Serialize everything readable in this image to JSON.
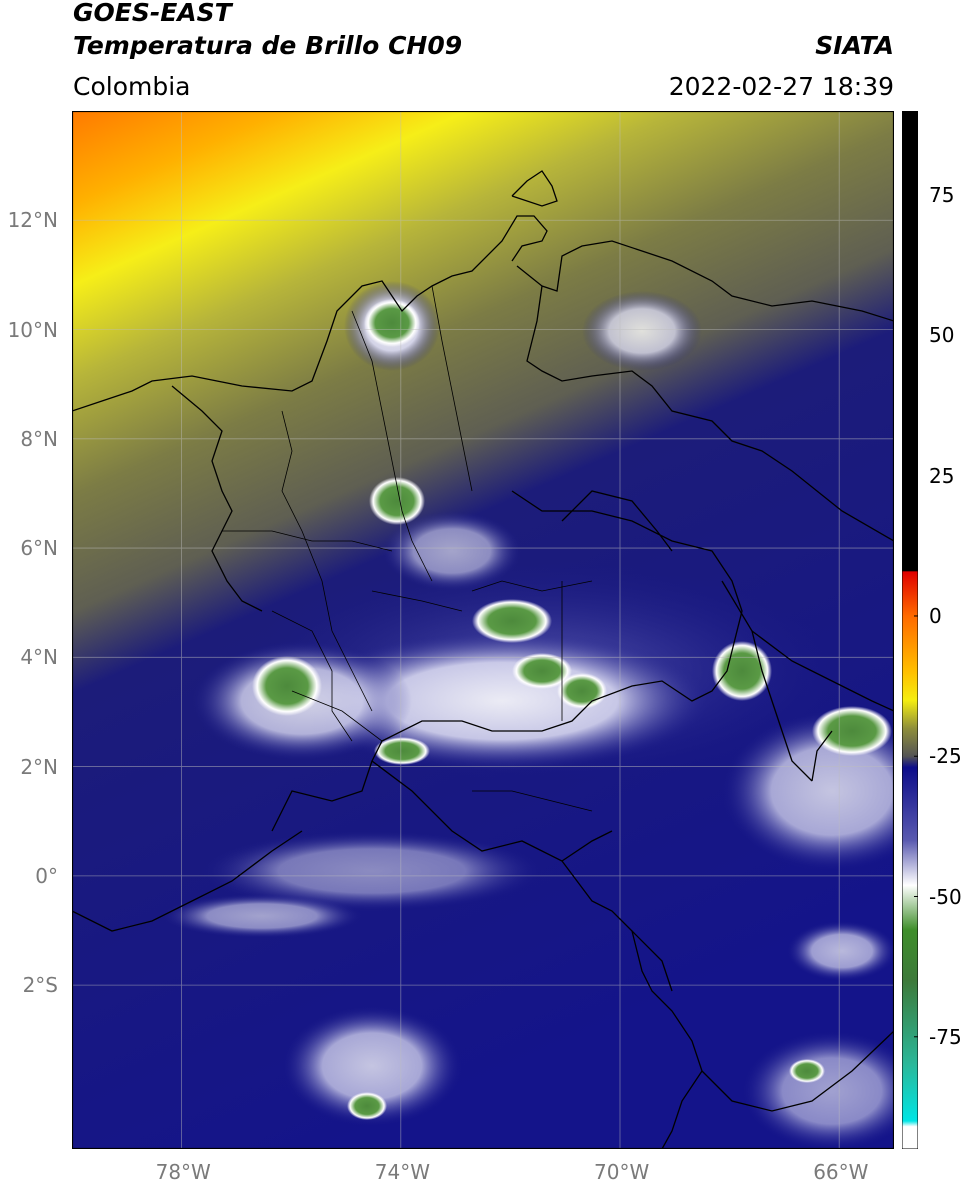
{
  "header": {
    "satellite": "GOES-EAST",
    "product": "Temperatura de Brillo CH09",
    "region": "Colombia",
    "source": "SIATA",
    "timestamp": "2022-02-27 18:39"
  },
  "map": {
    "lat_range": [
      -5,
      14
    ],
    "lon_range": [
      -80,
      -65
    ],
    "lat_ticks": [
      {
        "value": 12,
        "label": "12°N"
      },
      {
        "value": 10,
        "label": "10°N"
      },
      {
        "value": 8,
        "label": "8°N"
      },
      {
        "value": 6,
        "label": "6°N"
      },
      {
        "value": 4,
        "label": "4°N"
      },
      {
        "value": 2,
        "label": "2°N"
      },
      {
        "value": 0,
        "label": "0°"
      },
      {
        "value": -2,
        "label": "2°S"
      }
    ],
    "lon_ticks": [
      {
        "value": -78,
        "label": "78°W"
      },
      {
        "value": -74,
        "label": "74°W"
      },
      {
        "value": -70,
        "label": "70°W"
      },
      {
        "value": -66,
        "label": "66°W"
      }
    ],
    "gridlines": true
  },
  "colorbar": {
    "range": [
      -95,
      90
    ],
    "ticks": [
      {
        "value": 75,
        "label": "75"
      },
      {
        "value": 50,
        "label": "50"
      },
      {
        "value": 25,
        "label": "25"
      },
      {
        "value": 0,
        "label": "0"
      },
      {
        "value": -25,
        "label": "-25"
      },
      {
        "value": -50,
        "label": "-50"
      },
      {
        "value": -75,
        "label": "-75"
      }
    ],
    "stops": [
      {
        "value": 90,
        "color": "#000000"
      },
      {
        "value": 8,
        "color": "#000000"
      },
      {
        "value": 7.9,
        "color": "#e00000"
      },
      {
        "value": 0,
        "color": "#ff6a00"
      },
      {
        "value": -10,
        "color": "#ffc000"
      },
      {
        "value": -15,
        "color": "#f5ee10"
      },
      {
        "value": -20,
        "color": "#8f8f3a"
      },
      {
        "value": -25,
        "color": "#555555"
      },
      {
        "value": -27,
        "color": "#0d0d8a"
      },
      {
        "value": -40,
        "color": "#5a5ab0"
      },
      {
        "value": -48,
        "color": "#ffffff"
      },
      {
        "value": -56,
        "color": "#3e8e2a"
      },
      {
        "value": -65,
        "color": "#3d7a3a"
      },
      {
        "value": -80,
        "color": "#2ab89a"
      },
      {
        "value": -90,
        "color": "#00e5e5"
      },
      {
        "value": -91,
        "color": "#ffffff"
      },
      {
        "value": -95,
        "color": "#ffffff"
      }
    ]
  }
}
